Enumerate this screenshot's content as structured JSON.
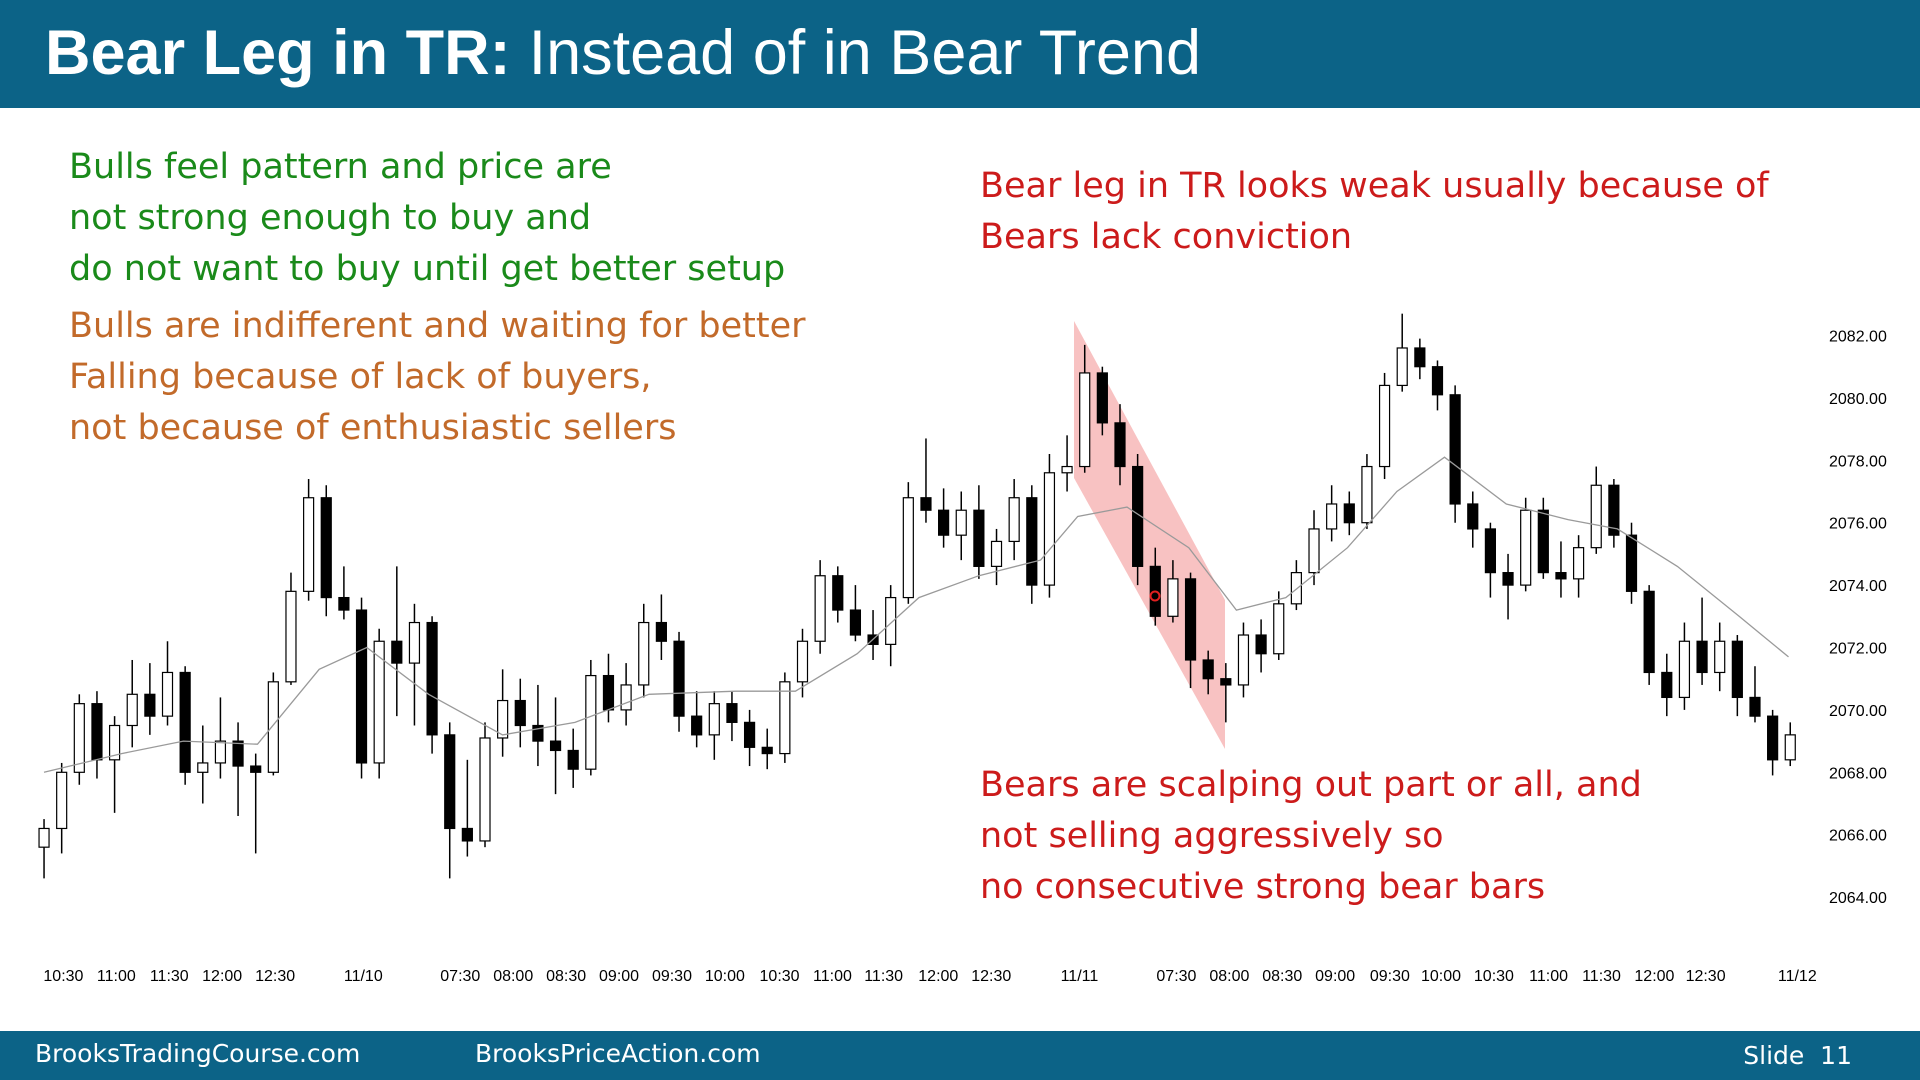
{
  "header": {
    "title_bold": "Bear Leg in TR:",
    "title_rest": "Instead of in Bear Trend"
  },
  "notes": {
    "green": [
      "Bulls feel pattern and price are",
      "not strong enough to buy and",
      "do not want to buy until get better setup"
    ],
    "orange": [
      "Bulls are indifferent and waiting for better",
      "Falling because of lack of buyers,",
      "not because of enthusiastic sellers"
    ],
    "red_top": [
      "Bear leg in TR looks weak usually because of",
      "Bears lack conviction"
    ],
    "red_bottom": [
      "Bears are scalping out part or all, and",
      "not selling aggressively so",
      "no consecutive strong bear bars"
    ]
  },
  "footer": {
    "left": "BrooksTradingCourse.com",
    "middle": "BrooksPriceAction.com",
    "right": "Slide  11"
  },
  "chart_data": {
    "type": "candlestick",
    "up_color": "#ffffff",
    "down_color": "#000000",
    "ma_color": "#9a9a9a",
    "xlim": [
      -1,
      100
    ],
    "ylim": [
      2063.5,
      2083
    ],
    "yticks": [
      {
        "value": 2082,
        "label": "2082.00"
      },
      {
        "value": 2080,
        "label": "2080.00"
      },
      {
        "value": 2078,
        "label": "2078.00"
      },
      {
        "value": 2076,
        "label": "2076.00"
      },
      {
        "value": 2074,
        "label": "2074.00"
      },
      {
        "value": 2072,
        "label": "2072.00"
      },
      {
        "value": 2070,
        "label": "2070.00"
      },
      {
        "value": 2068,
        "label": "2068.00"
      },
      {
        "value": 2066,
        "label": "2066.00"
      },
      {
        "value": 2064,
        "label": "2064.00"
      }
    ],
    "xticks": [
      {
        "value": 1.1,
        "label": "10:30"
      },
      {
        "value": 4.1,
        "label": "11:00"
      },
      {
        "value": 7.1,
        "label": "11:30"
      },
      {
        "value": 10.1,
        "label": "12:00"
      },
      {
        "value": 13.1,
        "label": "12:30"
      },
      {
        "value": 18.1,
        "label": "11/10"
      },
      {
        "value": 23.6,
        "label": "07:30"
      },
      {
        "value": 26.6,
        "label": "08:00"
      },
      {
        "value": 29.6,
        "label": "08:30"
      },
      {
        "value": 32.6,
        "label": "09:00"
      },
      {
        "value": 35.6,
        "label": "09:30"
      },
      {
        "value": 38.6,
        "label": "10:00"
      },
      {
        "value": 41.7,
        "label": "10:30"
      },
      {
        "value": 44.7,
        "label": "11:00"
      },
      {
        "value": 47.6,
        "label": "11:30"
      },
      {
        "value": 50.7,
        "label": "12:00"
      },
      {
        "value": 53.7,
        "label": "12:30"
      },
      {
        "value": 58.7,
        "label": "11/11"
      },
      {
        "value": 64.2,
        "label": "07:30"
      },
      {
        "value": 67.2,
        "label": "08:00"
      },
      {
        "value": 70.2,
        "label": "08:30"
      },
      {
        "value": 73.2,
        "label": "09:00"
      },
      {
        "value": 76.3,
        "label": "09:30"
      },
      {
        "value": 79.2,
        "label": "10:00"
      },
      {
        "value": 82.2,
        "label": "10:30"
      },
      {
        "value": 85.3,
        "label": "11:00"
      },
      {
        "value": 88.3,
        "label": "11:30"
      },
      {
        "value": 91.3,
        "label": "12:00"
      },
      {
        "value": 94.2,
        "label": "12:30"
      },
      {
        "value": 99.4,
        "label": "11/12"
      }
    ],
    "open": [
      2065.6,
      2066.2,
      2068,
      2070.2,
      2068.4,
      2069.5,
      2070.5,
      2069.8,
      2071.2,
      2068,
      2068.3,
      2069,
      2068.2,
      2068,
      2070.9,
      2073.8,
      2076.8,
      2073.6,
      2073.2,
      2068.3,
      2072.2,
      2071.5,
      2072.8,
      2069.2,
      2066.2,
      2065.8,
      2069.1,
      2070.3,
      2069.5,
      2069,
      2068.7,
      2068.1,
      2071.1,
      2070,
      2070.8,
      2072.8,
      2072.2,
      2069.8,
      2069.2,
      2070.2,
      2069.6,
      2068.8,
      2068.6,
      2070.9,
      2072.2,
      2074.3,
      2073.2,
      2072.4,
      2072.1,
      2073.6,
      2076.8,
      2076.4,
      2075.6,
      2076.4,
      2074.6,
      2075.4,
      2076.8,
      2074,
      2077.6,
      2077.8,
      2080.8,
      2079.2,
      2077.8,
      2074.6,
      2073,
      2074.2,
      2071.6,
      2071,
      2070.8,
      2072.4,
      2071.8,
      2073.4,
      2074.4,
      2075.8,
      2076.6,
      2076,
      2077.8,
      2080.4,
      2081.6,
      2081,
      2080.1,
      2076.6,
      2075.8,
      2074.4,
      2074,
      2076.4,
      2074.4,
      2074.2,
      2075.2,
      2077.2,
      2075.6,
      2073.8,
      2071.2,
      2070.4,
      2072.2,
      2071.2,
      2072.2,
      2070.4,
      2069.8,
      2068.4
    ],
    "high": [
      2066.5,
      2068.3,
      2070.5,
      2070.6,
      2069.8,
      2071.6,
      2071.5,
      2072.2,
      2071.4,
      2069.5,
      2070.4,
      2069.6,
      2068.6,
      2071.2,
      2074.4,
      2077.4,
      2077.2,
      2074.6,
      2073.6,
      2072.6,
      2074.6,
      2073.4,
      2073,
      2069.6,
      2068.4,
      2069.6,
      2071.3,
      2071,
      2070.8,
      2070.4,
      2069.4,
      2071.6,
      2071.8,
      2071.5,
      2073.4,
      2073.7,
      2072.5,
      2070.6,
      2070.6,
      2070.6,
      2070,
      2069.4,
      2071.2,
      2072.6,
      2074.8,
      2074.6,
      2074,
      2073.2,
      2074,
      2077.3,
      2078.7,
      2077.1,
      2077,
      2077.2,
      2075.8,
      2077.4,
      2077.2,
      2078.2,
      2078.8,
      2081.7,
      2081,
      2079.8,
      2078.2,
      2075.2,
      2074.8,
      2074.4,
      2071.9,
      2071.5,
      2072.8,
      2072.9,
      2073.8,
      2074.8,
      2076.4,
      2077.2,
      2077,
      2078.2,
      2080.8,
      2082.7,
      2081.9,
      2081.2,
      2080.4,
      2077,
      2076,
      2075,
      2076.8,
      2076.8,
      2075.4,
      2075.6,
      2077.8,
      2077.4,
      2076,
      2074,
      2071.8,
      2072.8,
      2073.6,
      2072.8,
      2072.4,
      2071.4,
      2070,
      2069.6
    ],
    "low": [
      2064.6,
      2065.4,
      2067.6,
      2067.8,
      2066.7,
      2068.8,
      2069.2,
      2069.5,
      2067.6,
      2067,
      2067.8,
      2066.6,
      2065.4,
      2067.9,
      2070.8,
      2073.5,
      2073,
      2072.9,
      2067.8,
      2067.8,
      2069.8,
      2069.5,
      2068.6,
      2064.6,
      2065.3,
      2065.6,
      2068.5,
      2068.8,
      2068.2,
      2067.3,
      2067.5,
      2067.9,
      2069.6,
      2069.5,
      2070.4,
      2071.6,
      2069.3,
      2068.8,
      2068.4,
      2069,
      2068.2,
      2068.1,
      2068.3,
      2070.4,
      2071.8,
      2072.8,
      2072.2,
      2071.6,
      2071.4,
      2073.4,
      2076,
      2075.2,
      2074.8,
      2074.2,
      2074,
      2074.8,
      2073.4,
      2073.6,
      2077,
      2077.6,
      2078.8,
      2077.2,
      2074,
      2072.7,
      2072.8,
      2070.7,
      2070.5,
      2069.6,
      2070.4,
      2071.2,
      2071.6,
      2073.2,
      2074,
      2075.4,
      2075.6,
      2075.8,
      2077.4,
      2080.2,
      2080.6,
      2079.6,
      2076,
      2075.2,
      2073.6,
      2072.9,
      2073.8,
      2074.2,
      2073.6,
      2073.6,
      2075,
      2075.2,
      2073.4,
      2070.8,
      2069.8,
      2070,
      2070.8,
      2070.6,
      2069.8,
      2069.6,
      2067.9,
      2068.2
    ],
    "close": [
      2066.2,
      2068,
      2070.2,
      2068.4,
      2069.5,
      2070.5,
      2069.8,
      2071.2,
      2068,
      2068.3,
      2069,
      2068.2,
      2068,
      2070.9,
      2073.8,
      2076.8,
      2073.6,
      2073.2,
      2068.3,
      2072.2,
      2071.5,
      2072.8,
      2069.2,
      2066.2,
      2065.8,
      2069.1,
      2070.3,
      2069.5,
      2069,
      2068.7,
      2068.1,
      2071.1,
      2070,
      2070.8,
      2072.8,
      2072.2,
      2069.8,
      2069.2,
      2070.2,
      2069.6,
      2068.8,
      2068.6,
      2070.9,
      2072.2,
      2074.3,
      2073.2,
      2072.4,
      2072.1,
      2073.6,
      2076.8,
      2076.4,
      2075.6,
      2076.4,
      2074.6,
      2075.4,
      2076.8,
      2074,
      2077.6,
      2077.8,
      2080.8,
      2079.2,
      2077.8,
      2074.6,
      2073,
      2074.2,
      2071.6,
      2071,
      2070.8,
      2072.4,
      2071.8,
      2073.4,
      2074.4,
      2075.8,
      2076.6,
      2076,
      2077.8,
      2080.4,
      2081.6,
      2081,
      2080.1,
      2076.6,
      2075.8,
      2074.4,
      2074,
      2076.4,
      2074.4,
      2074.2,
      2075.2,
      2077.2,
      2075.6,
      2073.8,
      2071.2,
      2070.4,
      2072.2,
      2071.2,
      2072.2,
      2070.4,
      2069.8,
      2068.4,
      2069.2
    ],
    "ma": {
      "x": [
        0,
        4.4,
        7.9,
        12.1,
        15.6,
        18.3,
        21.8,
        26,
        30.1,
        34.3,
        39.2,
        42.6,
        46.1,
        49.6,
        53,
        56.5,
        58.6,
        61.4,
        64.9,
        67.6,
        70.4,
        73.9,
        76.7,
        79.4,
        82.9,
        86.4,
        89.2,
        92.6,
        96.1,
        98.9
      ],
      "values": [
        2068,
        2068.6,
        2069,
        2068.9,
        2071.3,
        2072,
        2070.5,
        2069.2,
        2069.6,
        2070.5,
        2070.6,
        2070.6,
        2071.8,
        2073.6,
        2074.3,
        2074.8,
        2076.2,
        2076.5,
        2075.2,
        2073.2,
        2073.6,
        2075.2,
        2077,
        2078.1,
        2076.6,
        2076.1,
        2075.8,
        2074.6,
        2073,
        2071.7
      ]
    }
  }
}
